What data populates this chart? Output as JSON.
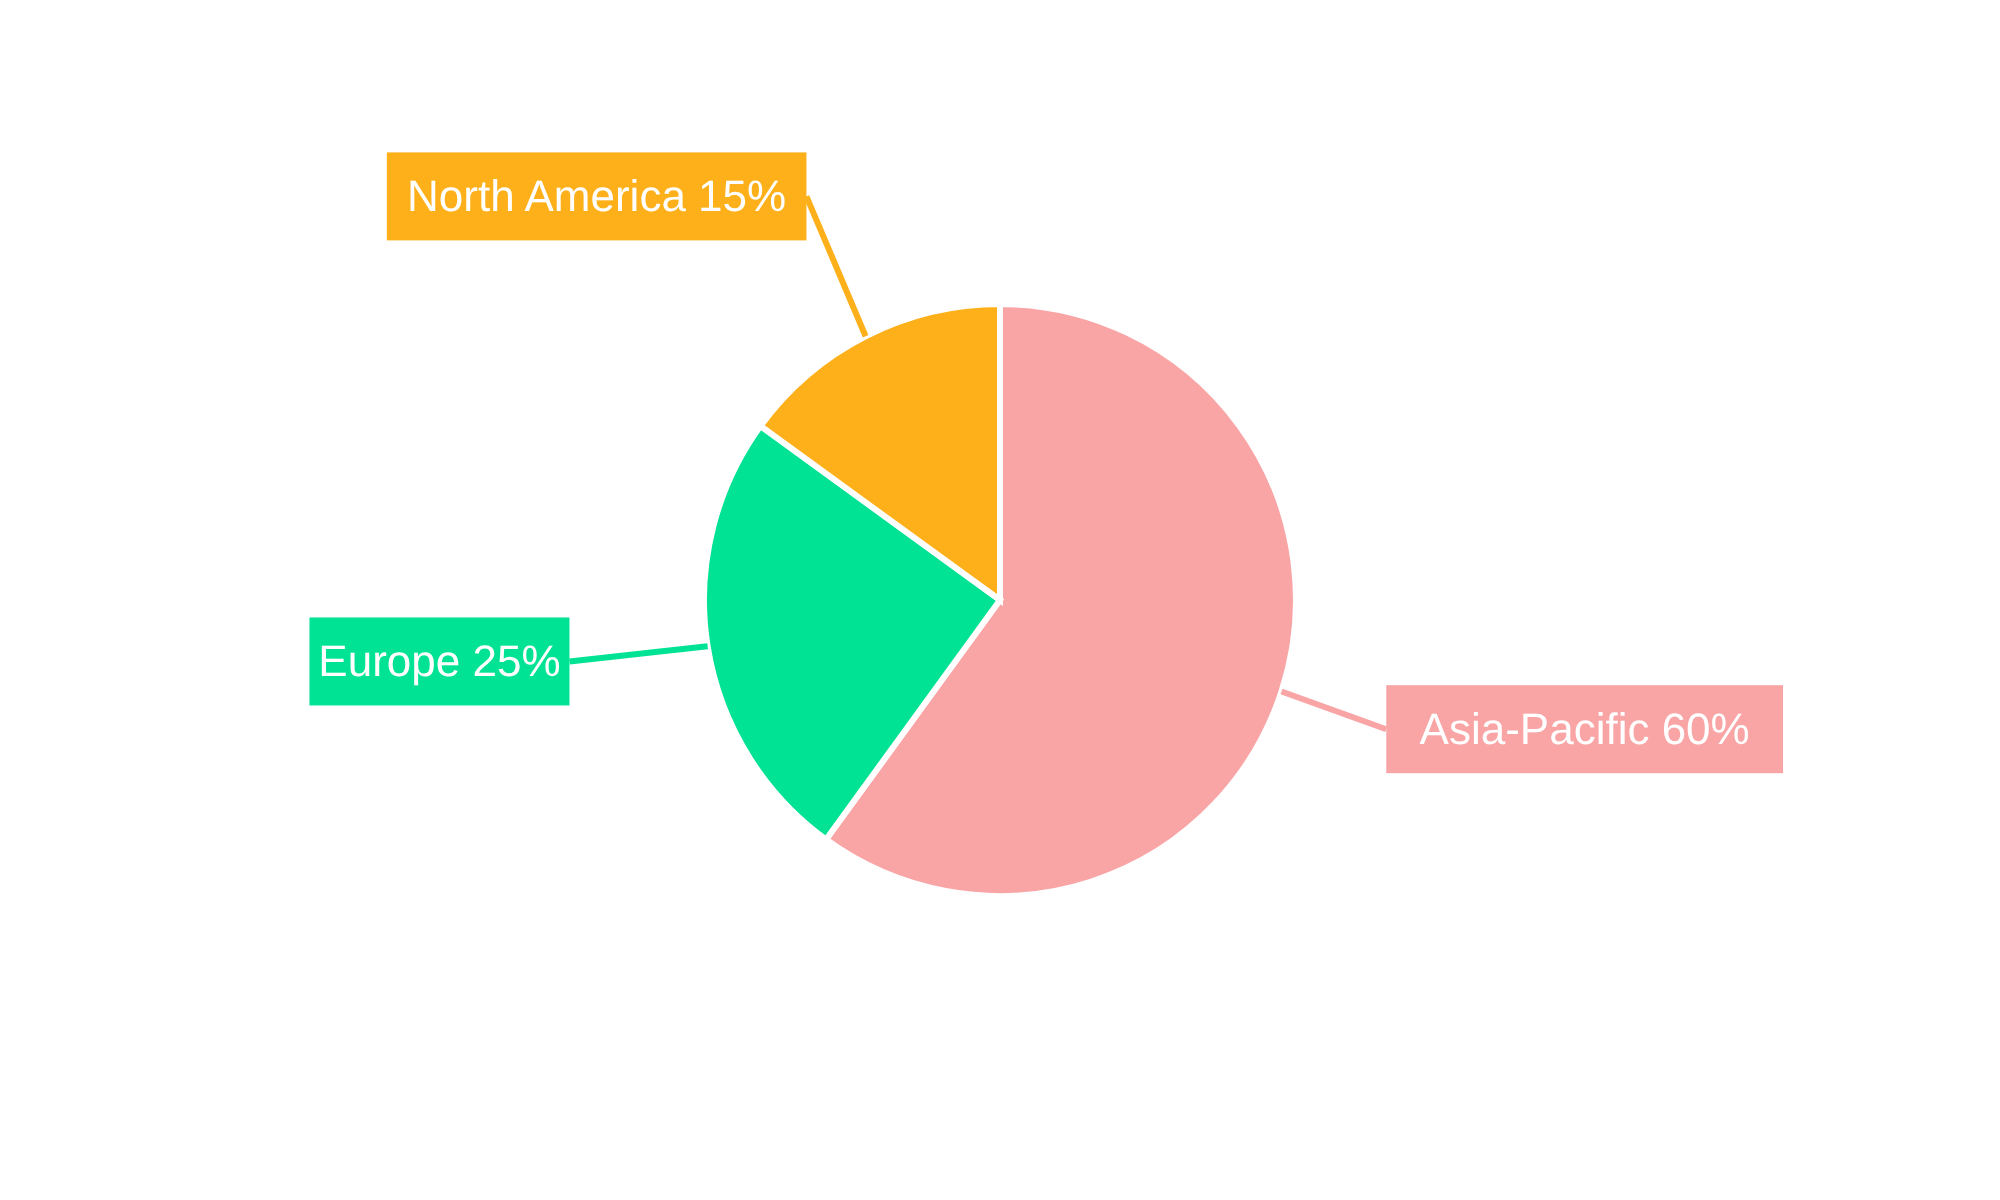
{
  "chart_data": {
    "type": "pie",
    "categories": [
      "Asia-Pacific",
      "Europe",
      "North America"
    ],
    "values": [
      60,
      25,
      15
    ],
    "colors": [
      "#f9a5a6",
      "#00e294",
      "#fdb01a"
    ],
    "value_labels": [
      "60%",
      "25%",
      "15%"
    ]
  }
}
